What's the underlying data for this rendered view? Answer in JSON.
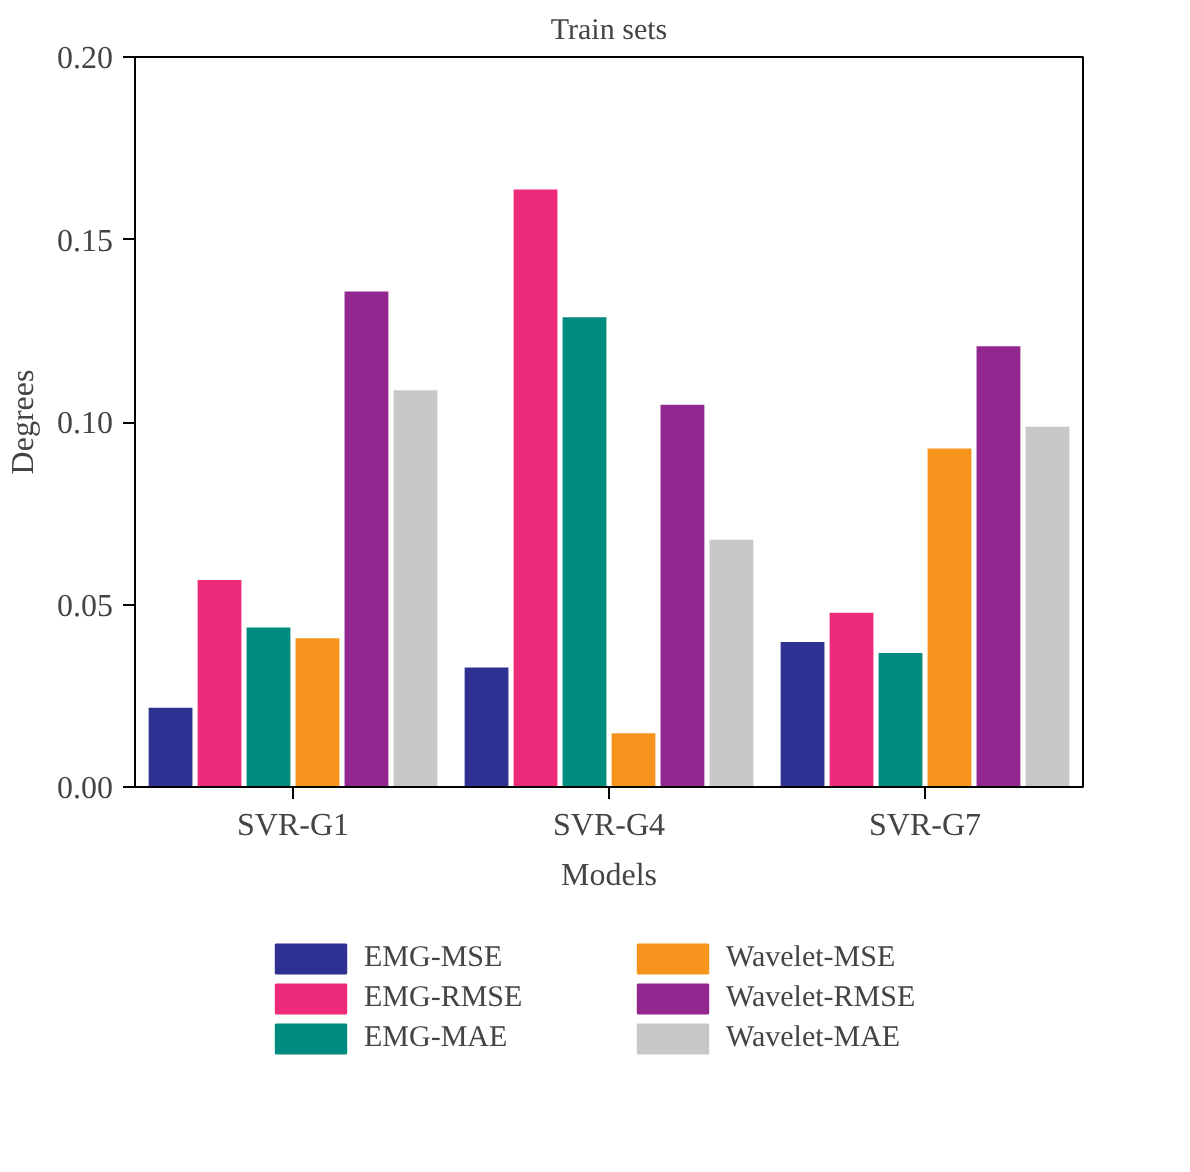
{
  "chart_data": {
    "type": "bar",
    "title": "Train sets",
    "xlabel": "Models",
    "ylabel": "Degrees",
    "categories": [
      "SVR-G1",
      "SVR-G4",
      "SVR-G7"
    ],
    "series": [
      {
        "name": "EMG-MSE",
        "color": "#2e3192",
        "values": [
          0.022,
          0.033,
          0.04
        ]
      },
      {
        "name": "EMG-RMSE",
        "color": "#ee2a7b",
        "values": [
          0.057,
          0.164,
          0.048
        ]
      },
      {
        "name": "EMG-MAE",
        "color": "#008b7f",
        "values": [
          0.044,
          0.129,
          0.037
        ]
      },
      {
        "name": "Wavelet-MSE",
        "color": "#f7941d",
        "values": [
          0.041,
          0.015,
          0.093
        ]
      },
      {
        "name": "Wavelet-RMSE",
        "color": "#92278f",
        "values": [
          0.136,
          0.105,
          0.121
        ]
      },
      {
        "name": "Wavelet-MAE",
        "color": "#c7c8ca",
        "values": [
          0.109,
          0.068,
          0.099
        ]
      }
    ],
    "ylim": [
      0,
      0.2
    ],
    "yticks": [
      {
        "value": 0,
        "label": "0.00"
      },
      {
        "value": 0.05,
        "label": "0.05"
      },
      {
        "value": 0.1,
        "label": "0.10"
      },
      {
        "value": 0.15,
        "label": "0.15"
      },
      {
        "value": 0.2,
        "label": "0.20"
      }
    ],
    "grid": false,
    "legend": "bottom"
  }
}
